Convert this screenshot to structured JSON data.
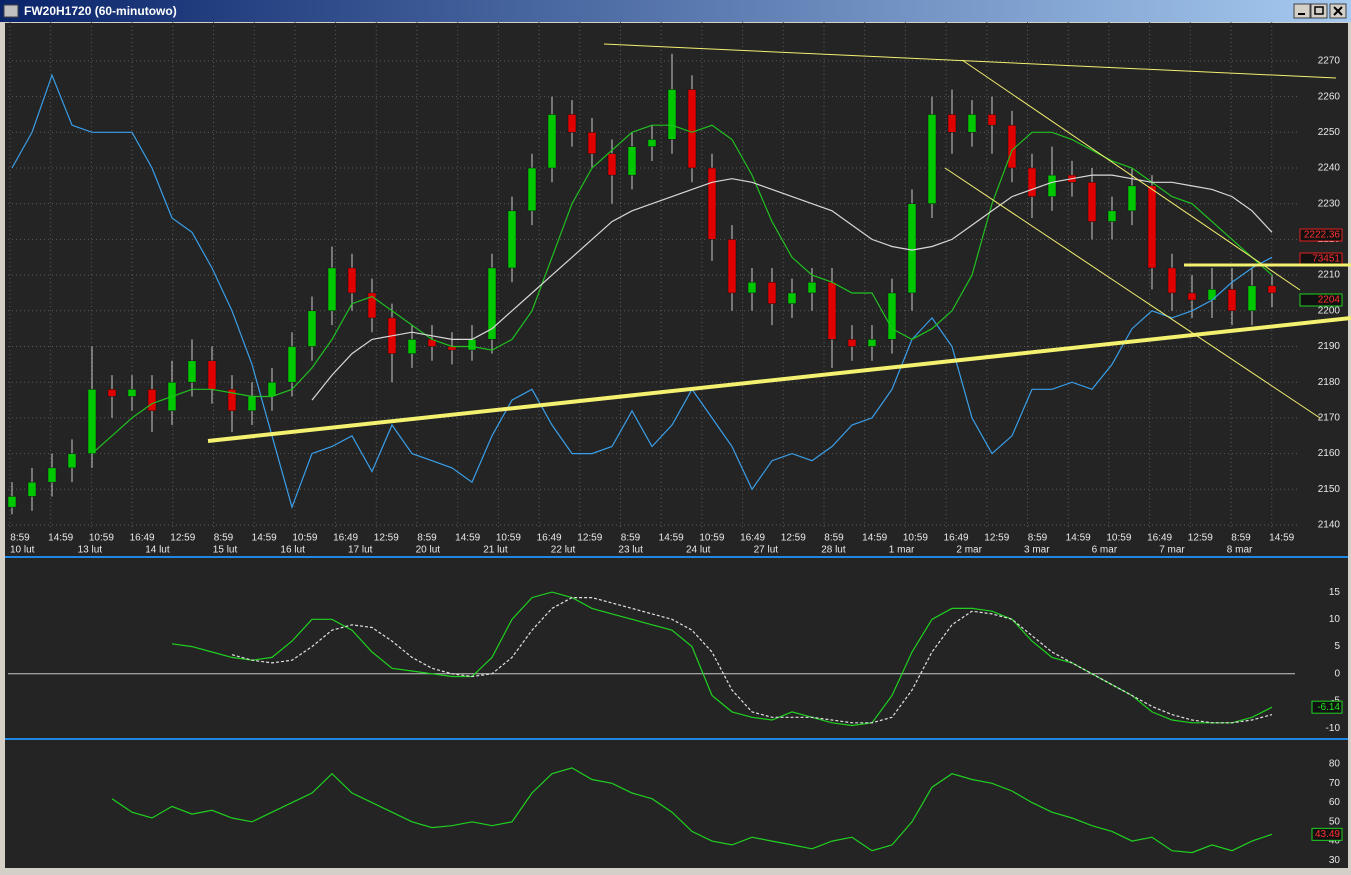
{
  "window": {
    "title": "FW20H1720 (60-minutowo)"
  },
  "chart_data": [
    {
      "type": "candlestick",
      "ylim": [
        2138.6,
        2280.9
      ],
      "yticks": [
        2140,
        2150,
        2160,
        2170,
        2180,
        2190,
        2200,
        2210,
        2220,
        2230,
        2240,
        2250,
        2260,
        2270
      ],
      "grid": true,
      "up_color": "#00c800",
      "down_color": "#e00000",
      "time_labels": [
        "8:59",
        "14:59",
        "10:59",
        "16:49",
        "12:59",
        "8:59",
        "14:59",
        "10:59",
        "16:49",
        "12:59",
        "8:59",
        "14:59",
        "10:59",
        "16:49",
        "12:59",
        "8:59",
        "14:59",
        "10:59",
        "16:49",
        "12:59",
        "8:59",
        "14:59",
        "10:59",
        "16:49",
        "12:59",
        "8:59",
        "14:59",
        "10:59",
        "16:49",
        "12:59",
        "8:59",
        "14:59"
      ],
      "date_labels": [
        "10 lut",
        "13 lut",
        "14 lut",
        "15 lut",
        "16 lut",
        "17 lut",
        "20 lut",
        "21 lut",
        "22 lut",
        "23 lut",
        "24 lut",
        "27 lut",
        "28 lut",
        "1 mar",
        "2 mar",
        "3 mar",
        "6 mar",
        "7 mar",
        "8 mar"
      ],
      "open": [
        2145,
        2148,
        2152,
        2156,
        2160,
        2178,
        2176,
        2178,
        2172,
        2180,
        2186,
        2178,
        2172,
        2176,
        2180,
        2190,
        2200,
        2212,
        2205,
        2198,
        2188,
        2192,
        2190,
        2189,
        2192,
        2212,
        2228,
        2240,
        2255,
        2250,
        2244,
        2238,
        2246,
        2248,
        2262,
        2240,
        2220,
        2205,
        2208,
        2202,
        2205,
        2208,
        2192,
        2190,
        2192,
        2205,
        2230,
        2255,
        2250,
        2255,
        2252,
        2240,
        2232,
        2238,
        2236,
        2225,
        2228,
        2235,
        2212,
        2205,
        2203,
        2206,
        2200,
        2207
      ],
      "high": [
        2152,
        2156,
        2160,
        2164,
        2190,
        2182,
        2182,
        2182,
        2186,
        2192,
        2190,
        2182,
        2180,
        2184,
        2194,
        2204,
        2218,
        2216,
        2209,
        2202,
        2196,
        2196,
        2194,
        2196,
        2216,
        2232,
        2244,
        2260,
        2259,
        2254,
        2248,
        2250,
        2252,
        2272,
        2266,
        2244,
        2224,
        2212,
        2212,
        2209,
        2212,
        2212,
        2196,
        2196,
        2209,
        2234,
        2260,
        2262,
        2259,
        2260,
        2256,
        2244,
        2246,
        2242,
        2240,
        2232,
        2240,
        2238,
        2216,
        2210,
        2212,
        2212,
        2212,
        2210
      ],
      "low": [
        2143,
        2144,
        2148,
        2152,
        2156,
        2170,
        2172,
        2166,
        2168,
        2176,
        2174,
        2166,
        2168,
        2172,
        2176,
        2186,
        2196,
        2200,
        2194,
        2180,
        2184,
        2186,
        2185,
        2186,
        2188,
        2208,
        2224,
        2236,
        2246,
        2240,
        2230,
        2234,
        2242,
        2244,
        2236,
        2214,
        2200,
        2200,
        2196,
        2198,
        2200,
        2184,
        2186,
        2186,
        2188,
        2200,
        2226,
        2244,
        2246,
        2244,
        2236,
        2226,
        2228,
        2232,
        2220,
        2220,
        2224,
        2206,
        2200,
        2198,
        2198,
        2196,
        2196,
        2201
      ],
      "close": [
        2148,
        2152,
        2156,
        2160,
        2178,
        2176,
        2178,
        2172,
        2180,
        2186,
        2178,
        2172,
        2176,
        2180,
        2190,
        2200,
        2212,
        2205,
        2198,
        2188,
        2192,
        2190,
        2189,
        2192,
        2212,
        2228,
        2240,
        2255,
        2250,
        2244,
        2238,
        2246,
        2248,
        2262,
        2240,
        2220,
        2205,
        2208,
        2202,
        2205,
        2208,
        2192,
        2190,
        2192,
        2205,
        2230,
        2255,
        2250,
        2255,
        2252,
        2240,
        2232,
        2238,
        2236,
        2225,
        2228,
        2235,
        2212,
        2205,
        2203,
        2206,
        2200,
        2207,
        2205
      ],
      "series": [
        {
          "color": "#3a9ee8",
          "values": [
            2240,
            2250,
            2266,
            2252,
            2250,
            2250,
            2250,
            2240,
            2226,
            2222,
            2212,
            2200,
            2185,
            2165,
            2145,
            2160,
            2162,
            2165,
            2155,
            2168,
            2160,
            2158,
            2156,
            2152,
            2165,
            2175,
            2178,
            2168,
            2160,
            2160,
            2162,
            2172,
            2162,
            2168,
            2178,
            2170,
            2162,
            2150,
            2158,
            2160,
            2158,
            2162,
            2168,
            2170,
            2178,
            2192,
            2198,
            2190,
            2170,
            2160,
            2165,
            2178,
            2178,
            2180,
            2178,
            2185,
            2195,
            2200,
            2198,
            2200,
            2203,
            2208,
            2212,
            2215
          ]
        },
        {
          "color": "#20c020",
          "values": [
            null,
            null,
            null,
            null,
            2160,
            2165,
            2170,
            2174,
            2176,
            2178,
            2178,
            2177,
            2176,
            2176,
            2178,
            2184,
            2192,
            2202,
            2204,
            2200,
            2196,
            2192,
            2190,
            2190,
            2189,
            2192,
            2200,
            2215,
            2230,
            2240,
            2245,
            2250,
            2252,
            2252,
            2250,
            2252,
            2248,
            2238,
            2225,
            2215,
            2210,
            2208,
            2205,
            2205,
            2195,
            2192,
            2195,
            2200,
            2210,
            2230,
            2245,
            2250,
            2250,
            2248,
            2245,
            2242,
            2240,
            2236,
            2232,
            2230,
            2225,
            2220,
            2215,
            2210
          ]
        },
        {
          "color": "#d8d8d8",
          "values": [
            null,
            null,
            null,
            null,
            null,
            null,
            null,
            null,
            null,
            null,
            null,
            null,
            null,
            null,
            null,
            2175,
            2182,
            2188,
            2192,
            2193,
            2194,
            2193,
            2192,
            2192,
            2195,
            2200,
            2205,
            2210,
            2215,
            2220,
            2225,
            2228,
            2230,
            2232,
            2234,
            2236,
            2237,
            2236,
            2234,
            2232,
            2230,
            2228,
            2224,
            2220,
            2218,
            2217,
            2218,
            2220,
            2224,
            2228,
            2232,
            2234,
            2236,
            2237,
            2238,
            2238,
            2237,
            2236,
            2236,
            2235,
            2234,
            2232,
            2228,
            2222
          ]
        }
      ],
      "tags": [
        "2222.36",
        "73451",
        "2204"
      ]
    },
    {
      "type": "line",
      "ylim": [
        -11.8,
        20.9
      ],
      "yticks": [
        15,
        10,
        5,
        0,
        -5,
        -10
      ],
      "zero_line": true,
      "last_value_label": true,
      "series": [
        {
          "color": "#20d020",
          "values": [
            null,
            null,
            null,
            null,
            null,
            null,
            null,
            null,
            5.5,
            5,
            4,
            3,
            2.5,
            3,
            6,
            10,
            10,
            8,
            4,
            1,
            0.5,
            0,
            -0.5,
            -0.5,
            3,
            10,
            14,
            15,
            14,
            12,
            11,
            10,
            9,
            8,
            5,
            -4,
            -7,
            -8,
            -8.5,
            -7,
            -8,
            -9,
            -9.5,
            -9,
            -4,
            4,
            10,
            12,
            12,
            11.5,
            10,
            6,
            3,
            2,
            0,
            -2,
            -4,
            -7,
            -8.5,
            -9,
            -9,
            -9,
            -8,
            -6.14
          ]
        },
        {
          "color": "#e0e0e0",
          "dashed": true,
          "values": [
            null,
            null,
            null,
            null,
            null,
            null,
            null,
            null,
            null,
            null,
            null,
            3.5,
            2.5,
            2,
            2.5,
            5,
            8,
            9,
            8.5,
            6,
            3,
            1,
            0,
            -0.5,
            0,
            3,
            8,
            12,
            14,
            14,
            13,
            12,
            11,
            10,
            8,
            4,
            -3,
            -7,
            -8,
            -8,
            -8,
            -8.5,
            -9,
            -9,
            -8,
            -3,
            4,
            9,
            11.5,
            11,
            10,
            7,
            4,
            2,
            0,
            -2,
            -4,
            -6,
            -7.5,
            -8.5,
            -9,
            -9,
            -8.5,
            -7.5
          ]
        }
      ]
    },
    {
      "type": "line",
      "ylim": [
        26,
        92
      ],
      "yticks": [
        80,
        70,
        60,
        50,
        40,
        30
      ],
      "last_value_label": true,
      "series": [
        {
          "color": "#20d020",
          "values": [
            null,
            null,
            null,
            null,
            null,
            62,
            55,
            52,
            58,
            54,
            56,
            52,
            50,
            55,
            60,
            65,
            75,
            65,
            60,
            55,
            50,
            47,
            48,
            50,
            48,
            50,
            65,
            75,
            78,
            72,
            70,
            65,
            62,
            55,
            45,
            40,
            38,
            42,
            40,
            38,
            36,
            40,
            42,
            35,
            38,
            50,
            68,
            75,
            72,
            70,
            66,
            60,
            55,
            52,
            48,
            45,
            40,
            42,
            35,
            34,
            38,
            35,
            40,
            43.49
          ]
        }
      ]
    }
  ]
}
